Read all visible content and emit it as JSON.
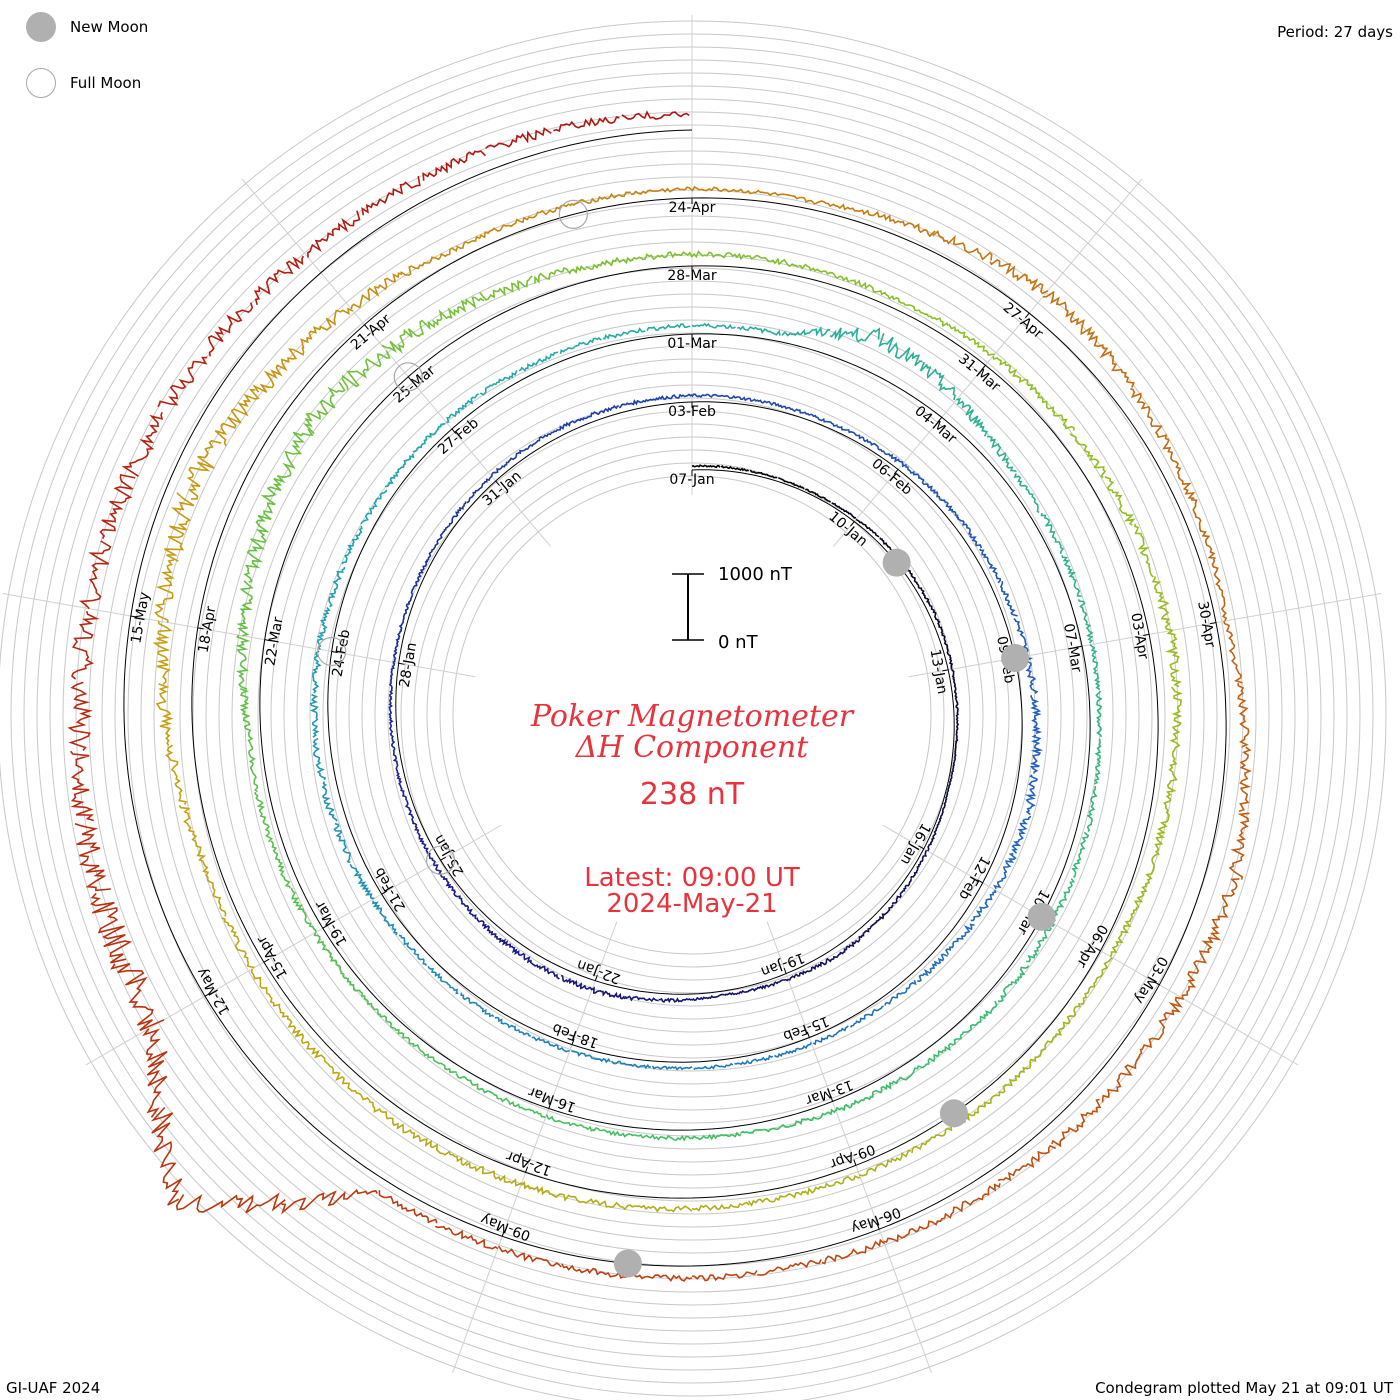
{
  "legend": {
    "new_moon_label": "New Moon",
    "full_moon_label": "Full Moon"
  },
  "period_text": "Period: 27 days",
  "footer": {
    "left": "GI-UAF 2024",
    "right": "Condegram plotted May 21 at 09:01 UT"
  },
  "center": {
    "title_line1": "Poker Magnetometer",
    "title_line2": "ΔH Component",
    "value_text": "238 nT",
    "latest_text": "Latest: 09:00 UT",
    "date_text": "2024-May-21",
    "scale_top": "1000 nT",
    "scale_bottom": "0 nT"
  },
  "colors": {
    "title_red": "#e8323c",
    "ring_line": "#c8c8c8",
    "baseline": "#000000",
    "moon_fill": "#b0b0b0"
  },
  "chart_data": {
    "type": "line",
    "projection": "spiral condegram, 27-day rotation",
    "period_days": 27,
    "scale_nT": [
      0,
      1000
    ],
    "start_date": "2024-01-07",
    "end_date": "2024-05-21",
    "date_labels": [
      "07-Jan",
      "10-Jan",
      "13-Jan",
      "16-Jan",
      "19-Jan",
      "22-Jan",
      "25-Jan",
      "28-Jan",
      "31-Jan",
      "03-Feb",
      "06-Feb",
      "09-Feb",
      "12-Feb",
      "15-Feb",
      "18-Feb",
      "21-Feb",
      "24-Feb",
      "27-Feb",
      "01-Mar",
      "04-Mar",
      "07-Mar",
      "10-Mar",
      "13-Mar",
      "16-Mar",
      "19-Mar",
      "22-Mar",
      "25-Mar",
      "28-Mar",
      "31-Mar",
      "03-Apr",
      "06-Apr",
      "09-Apr",
      "12-Apr",
      "15-Apr",
      "18-Apr",
      "21-Apr",
      "24-Apr",
      "27-Apr",
      "30-Apr",
      "03-May",
      "06-May",
      "09-May",
      "12-May",
      "15-May"
    ],
    "new_moons": [
      "2024-01-11",
      "2024-02-09",
      "2024-03-10",
      "2024-04-08",
      "2024-05-08"
    ],
    "full_moons": [
      "2024-01-25",
      "2024-02-24",
      "2024-03-25",
      "2024-04-23"
    ],
    "series": [
      {
        "values": [
          {
            "date": "2024-01-07",
            "nT": 60
          },
          {
            "date": "2024-01-09",
            "nT": 40
          },
          {
            "date": "2024-01-12",
            "nT": 80
          },
          {
            "date": "2024-01-15",
            "nT": 30
          },
          {
            "date": "2024-01-18",
            "nT": 120
          },
          {
            "date": "2024-01-20",
            "nT": 60
          },
          {
            "date": "2024-01-22",
            "nT": 150
          },
          {
            "date": "2024-01-26",
            "nT": 90
          },
          {
            "date": "2024-01-29",
            "nT": 70
          },
          {
            "date": "2024-02-01",
            "nT": 110
          },
          {
            "date": "2024-02-05",
            "nT": 80
          },
          {
            "date": "2024-02-08",
            "nT": 150
          },
          {
            "date": "2024-02-11",
            "nT": 260
          },
          {
            "date": "2024-02-14",
            "nT": 110
          },
          {
            "date": "2024-02-17",
            "nT": 90
          },
          {
            "date": "2024-02-20",
            "nT": 130
          },
          {
            "date": "2024-02-23",
            "nT": 220
          },
          {
            "date": "2024-02-26",
            "nT": 150
          },
          {
            "date": "2024-03-02",
            "nT": 120
          },
          {
            "date": "2024-03-03",
            "nT": 550
          },
          {
            "date": "2024-03-05",
            "nT": 180
          },
          {
            "date": "2024-03-08",
            "nT": 140
          },
          {
            "date": "2024-03-11",
            "nT": 200
          },
          {
            "date": "2024-03-14",
            "nT": 120
          },
          {
            "date": "2024-03-18",
            "nT": 130
          },
          {
            "date": "2024-03-21",
            "nT": 180
          },
          {
            "date": "2024-03-24",
            "nT": 650
          },
          {
            "date": "2024-03-27",
            "nT": 200
          },
          {
            "date": "2024-03-30",
            "nT": 140
          },
          {
            "date": "2024-04-03",
            "nT": 320
          },
          {
            "date": "2024-04-06",
            "nT": 180
          },
          {
            "date": "2024-04-10",
            "nT": 150
          },
          {
            "date": "2024-04-13",
            "nT": 220
          },
          {
            "date": "2024-04-16",
            "nT": 200
          },
          {
            "date": "2024-04-19",
            "nT": 700
          },
          {
            "date": "2024-04-22",
            "nT": 160
          },
          {
            "date": "2024-04-25",
            "nT": 120
          },
          {
            "date": "2024-04-27",
            "nT": 400
          },
          {
            "date": "2024-04-30",
            "nT": 150
          },
          {
            "date": "2024-05-02",
            "nT": 450
          },
          {
            "date": "2024-05-05",
            "nT": 250
          },
          {
            "date": "2024-05-07",
            "nT": 180
          },
          {
            "date": "2024-05-10",
            "nT": 200
          },
          {
            "date": "2024-05-11",
            "nT": 2200
          },
          {
            "date": "2024-05-12",
            "nT": 900
          },
          {
            "date": "2024-05-14",
            "nT": 700
          },
          {
            "date": "2024-05-16",
            "nT": 600
          },
          {
            "date": "2024-05-18",
            "nT": 350
          },
          {
            "date": "2024-05-21",
            "nT": 238
          }
        ]
      }
    ],
    "color_ramp": [
      "#000000",
      "#1a1a8c",
      "#2060c0",
      "#20a8b0",
      "#40c060",
      "#90c020",
      "#c8a010",
      "#c05010",
      "#b01010"
    ]
  }
}
